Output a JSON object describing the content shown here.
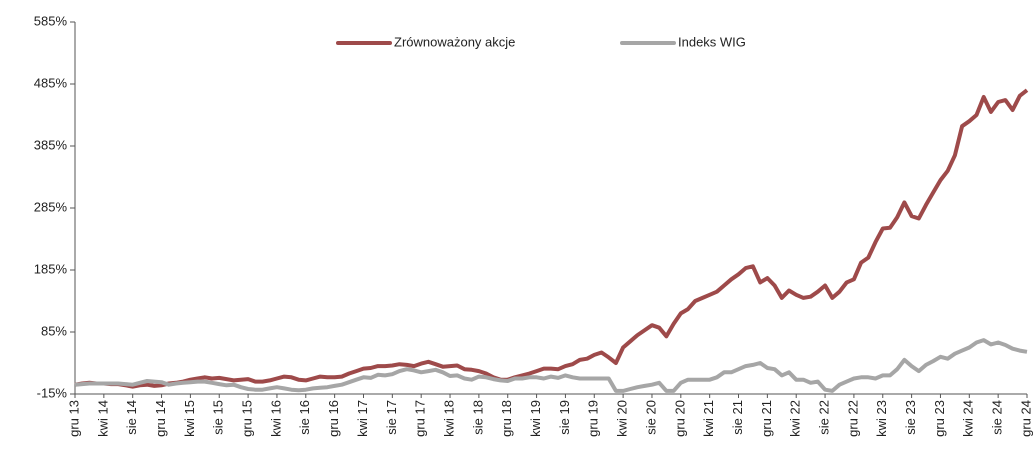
{
  "chart_data": {
    "type": "line",
    "categories": [
      "gru 13",
      null,
      null,
      null,
      "kwi 14",
      null,
      null,
      null,
      "sie 14",
      null,
      null,
      null,
      "gru 14",
      null,
      null,
      null,
      "kwi 15",
      null,
      null,
      null,
      "sie 15",
      null,
      null,
      null,
      "gru 15",
      null,
      null,
      null,
      "kwi 16",
      null,
      null,
      null,
      "sie 16",
      null,
      null,
      null,
      "gru 16",
      null,
      null,
      null,
      "kwi 17",
      null,
      null,
      null,
      "sie 17",
      null,
      null,
      null,
      "gru 17",
      null,
      null,
      null,
      "kwi 18",
      null,
      null,
      null,
      "sie 18",
      null,
      null,
      null,
      "gru 18",
      null,
      null,
      null,
      "kwi 19",
      null,
      null,
      null,
      "sie 19",
      null,
      null,
      null,
      "gru 19",
      null,
      null,
      null,
      "kwi 20",
      null,
      null,
      null,
      "sie 20",
      null,
      null,
      null,
      "gru 20",
      null,
      null,
      null,
      "kwi 21",
      null,
      null,
      null,
      "sie 21",
      null,
      null,
      null,
      "gru 21",
      null,
      null,
      null,
      "kwi 22",
      null,
      null,
      null,
      "sie 22",
      null,
      null,
      null,
      "gru 22",
      null,
      null,
      null,
      "kwi 23",
      null,
      null,
      null,
      "sie 23",
      null,
      null,
      null,
      "gru 23",
      null,
      null,
      null,
      "kwi 24",
      null,
      null,
      null,
      "sie 24",
      null,
      null,
      null,
      "gru 24"
    ],
    "series": [
      {
        "name": "Zrównoważony akcje",
        "color": "#9e4a4a",
        "values": [
          0,
          2,
          3,
          2,
          2,
          1,
          1,
          -1,
          -3,
          -1,
          0,
          -2,
          -1,
          2,
          3,
          5,
          8,
          10,
          12,
          10,
          11,
          9,
          7,
          8,
          9,
          5,
          5,
          7,
          10,
          13,
          12,
          8,
          7,
          10,
          13,
          12,
          12,
          13,
          18,
          22,
          26,
          27,
          30,
          30,
          31,
          33,
          32,
          30,
          34,
          37,
          33,
          29,
          30,
          31,
          25,
          24,
          22,
          18,
          12,
          8,
          8,
          12,
          15,
          18,
          22,
          26,
          26,
          25,
          30,
          33,
          40,
          42,
          48,
          52,
          44,
          35,
          60,
          70,
          80,
          88,
          96,
          92,
          78,
          98,
          115,
          122,
          135,
          140,
          145,
          150,
          160,
          170,
          178,
          188,
          191,
          165,
          172,
          160,
          140,
          152,
          145,
          140,
          142,
          150,
          160,
          140,
          150,
          165,
          170,
          197,
          205,
          230,
          252,
          253,
          270,
          294,
          272,
          268,
          290,
          310,
          330,
          345,
          370,
          417,
          425,
          435,
          464,
          440,
          456,
          459,
          443,
          466,
          475
        ]
      },
      {
        "name": "Indeks WIG",
        "color": "#a6a6a6",
        "values": [
          0,
          1,
          2,
          2,
          2,
          2,
          2,
          1,
          0,
          3,
          6,
          5,
          4,
          0,
          2,
          3,
          4,
          5,
          5,
          3,
          1,
          -1,
          0,
          -4,
          -7,
          -8,
          -8,
          -6,
          -4,
          -6,
          -8,
          -9,
          -8,
          -6,
          -5,
          -4,
          -2,
          0,
          4,
          8,
          12,
          11,
          16,
          15,
          17,
          22,
          25,
          23,
          20,
          22,
          24,
          20,
          14,
          15,
          10,
          8,
          13,
          12,
          9,
          7,
          6,
          10,
          10,
          12,
          12,
          10,
          13,
          11,
          15,
          12,
          10,
          10,
          10,
          10,
          10,
          -10,
          -10,
          -7,
          -4,
          -2,
          0,
          3,
          -10,
          -10,
          3,
          8,
          8,
          8,
          8,
          12,
          20,
          20,
          25,
          30,
          32,
          35,
          27,
          25,
          15,
          20,
          8,
          8,
          3,
          5,
          -8,
          -10,
          0,
          5,
          10,
          12,
          12,
          10,
          15,
          15,
          25,
          40,
          30,
          22,
          32,
          38,
          45,
          42,
          50,
          55,
          60,
          68,
          72,
          65,
          68,
          64,
          58,
          55,
          53
        ]
      }
    ],
    "ylim": [
      -15,
      585
    ],
    "yticks": [
      {
        "value": -15,
        "label": "-15%"
      },
      {
        "value": 85,
        "label": "85%"
      },
      {
        "value": 185,
        "label": "185%"
      },
      {
        "value": 285,
        "label": "285%"
      },
      {
        "value": 385,
        "label": "385%"
      },
      {
        "value": 485,
        "label": "485%"
      },
      {
        "value": 585,
        "label": "585%"
      }
    ],
    "grid": false,
    "legend": "top"
  }
}
